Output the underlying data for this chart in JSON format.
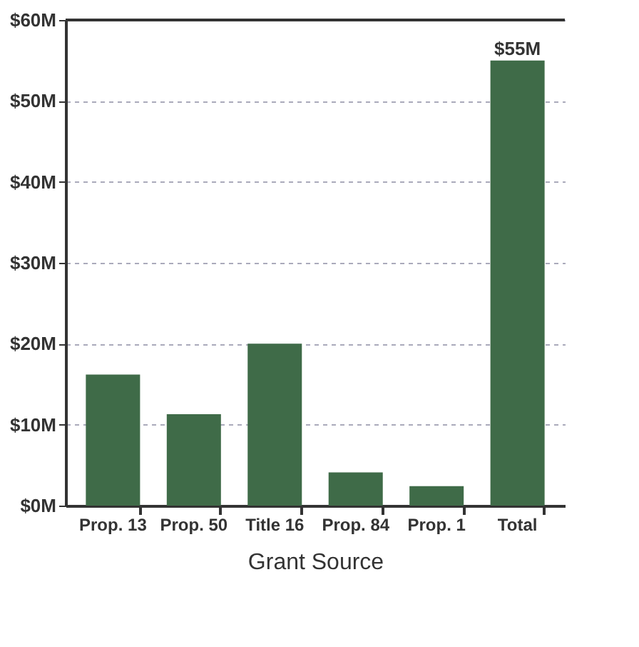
{
  "chart_data": {
    "type": "bar",
    "xlabel": "Grant Source",
    "categories": [
      "Prop. 13",
      "Prop. 50",
      "Title 16",
      "Prop. 84",
      "Prop. 1",
      "Total"
    ],
    "values": [
      16.2,
      11.3,
      20,
      4.1,
      2.4,
      55
    ],
    "value_labels": [
      null,
      null,
      null,
      null,
      null,
      "$55M"
    ],
    "color": "#3f6b48",
    "ylim": [
      0,
      60
    ],
    "yticks": [
      {
        "value": 0,
        "label": "$0M"
      },
      {
        "value": 10,
        "label": "$10M"
      },
      {
        "value": 20,
        "label": "$20M"
      },
      {
        "value": 30,
        "label": "$30M"
      },
      {
        "value": 40,
        "label": "$40M"
      },
      {
        "value": 50,
        "label": "$50M"
      },
      {
        "value": 60,
        "label": "$60M"
      }
    ],
    "grid": "y"
  }
}
